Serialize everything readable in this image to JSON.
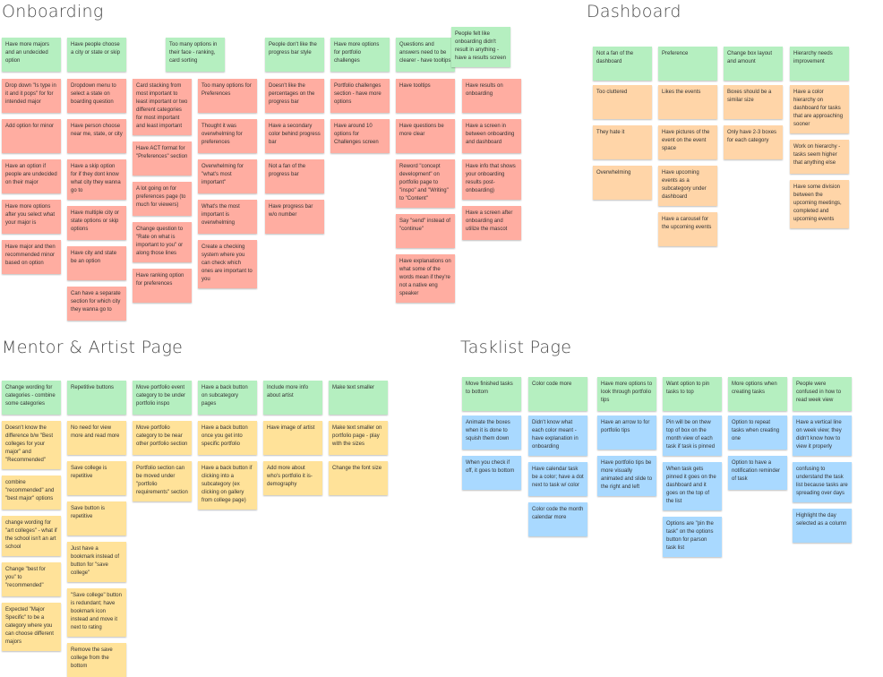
{
  "colors": {
    "header": "#b5efc0",
    "onboarding": "#ffada1",
    "dashboard": "#ffd5a8",
    "mentor": "#ffe299",
    "tasklist": "#a9d9ff"
  },
  "sections": [
    {
      "title": "Onboarding",
      "color": "red",
      "columns": [
        {
          "header": "Have more majors and an undecided option",
          "notes": [
            "Drop down \"Is type in it and it pops\" for for intended major",
            "Add option for minor",
            "Have an option if people are undecided on their major",
            "Have more options after you select what your major is",
            "Have major and then recommended minor based on option"
          ]
        },
        {
          "header": "Have people choose a city or state or skip",
          "notes": [
            "Dropdown menu to select a state on boarding question",
            "Have person choose near me, state, or city",
            "Have a skip option for if they dont know what city they wanna go to",
            "Have multiple city or state options or skip options",
            "Have city and state be an option",
            "Can have a separate section for which city they wanna go to"
          ]
        },
        {
          "header": null,
          "notes": [
            "Card stacking from most important to least important or two different categories for most important and least important",
            "Have ACT format for \"Preferences\" section",
            "A lot going on for preferences page (to much for viewers)",
            "Change question to \"Rate on what is important to you\" or along those lines",
            "Have ranking option for preferences"
          ]
        },
        {
          "header": "Too many options in their face - ranking, card sorting",
          "notes": [
            "Too many options for Preferences",
            "Thought it was overwhelming for preferences",
            "Overwhelming for \"what's most important\"",
            "What's the most important is overwhelming",
            "Create a checking system where you can check which ones are important to you"
          ]
        },
        {
          "header": "People don't like the progress bar style",
          "notes": [
            "Doesn't like the percentages on the progress bar",
            "Have a secondary color behind progress bar",
            "Not a fan of the progress bar",
            "Have progress bar w/o number"
          ]
        },
        {
          "header": "Have more options for portfolio challenges",
          "notes": [
            "Portfolio challenges section - have more options",
            "Have around 10 options for Challenges screen"
          ]
        },
        {
          "header": "Questions and answers need to be clearer - have tooltips",
          "notes": [
            "Have tooltips",
            "Have questions be more clear",
            "Reword \"concept development\" on portfolio page to \"inspo\" and \"Writing\" to \"Content\"",
            "Say \"send\" instead of \"continue\"",
            "Have explanations on what some of the words mean if they're not a native eng speaker"
          ]
        },
        {
          "header": "People felt like onboarding didn't result in anything - have a results screen",
          "notes": [
            "Have results on onboarding",
            "Have a screen in between onboarding and dashboard",
            "Have info that shows your onboarding results post-onboarding)",
            "Have a screen after onboarding and utilize the mascot"
          ]
        }
      ]
    },
    {
      "title": "Dashboard",
      "color": "orange",
      "columns": [
        {
          "header": "Not a fan of the dashboard",
          "notes": [
            "Too cluttered",
            "They hate it",
            "Overwhelming"
          ]
        },
        {
          "header": "Preference",
          "notes": [
            "Likes the events",
            "Have pictures of the event on the event space",
            "Have upcoming events as a subcategory under dashboard",
            "Have a carousel for the upcoming events"
          ]
        },
        {
          "header": "Change box layout and amount",
          "notes": [
            "Boxes should be a similar size",
            "Only have 2-3 boxes for each category"
          ]
        },
        {
          "header": "Hierarchy needs improvement",
          "notes": [
            "Have a color hierarchy on dashboard for tasks that are approaching sooner",
            "Work on hierarchy - tasks seem higher that anything else",
            "Have some division between the upcoming meetings, completed and upcoming events"
          ]
        }
      ]
    },
    {
      "title": "Mentor & Artist Page",
      "color": "yellow",
      "columns": [
        {
          "header": "Change wording for categories - combine some categories",
          "notes": [
            "Doesn't know the difference b/w \"Best colleges for your major\" and \"Recommended\"",
            "combine \"recommended\" and \"best major\" options",
            "change wording for \"art colleges\" - what if the school isn't an art school",
            "Change \"best for you\" to \"recommended\"",
            "Expected \"Major Specific\" to be a category where you can choose different majors"
          ]
        },
        {
          "header": "Repetitive buttons",
          "notes": [
            "No need for view more and read more",
            "Save college is repetitive",
            "Save button is repetitive",
            "Just have a bookmark instead of button for \"save college\"",
            "\"Save college\" button is redundant; have bookmark icon instead and move it next to rating",
            "Remove the save college from the bottom"
          ]
        },
        {
          "header": "Move portfolio event category to be under portfolio inspo",
          "notes": [
            "Move portfolio category to be near other portfolio section",
            "Portfolio section can be moved under \"portfolio requirements\" section"
          ]
        },
        {
          "header": "Have a back button on subcategory pages",
          "notes": [
            "Have a back button once you get into specific portfolio",
            "Have a back button if clicking into a subcategory (ex clicking on gallery from college page)"
          ]
        },
        {
          "header": "Include more info about artist",
          "notes": [
            "Have image of artist",
            "Add more about who's portfolio it is-demography"
          ]
        },
        {
          "header": "Make text smaller",
          "notes": [
            "Make text smaller on portfolio page - play with the sizes",
            "Change the font size"
          ]
        }
      ]
    },
    {
      "title": "Tasklist Page",
      "color": "blue",
      "columns": [
        {
          "header": "Move finished tasks to bottom",
          "notes": [
            "Animate the boxes when it is done to squish them down",
            "When you check if off, it goes to bottom"
          ]
        },
        {
          "header": "Color code more",
          "notes": [
            "Didn't know what each color meant - have explanation in onboarding",
            "Have calendar task be a color; have a dot next to task w/ color",
            "Color code the month calendar more"
          ]
        },
        {
          "header": "Have more options to look through portfolio tips",
          "notes": [
            "Have an arrow to for portfolio tips",
            "Have portfolio tips be more visually animated and slide to the right and left"
          ]
        },
        {
          "header": "Want option to pin tasks to top",
          "notes": [
            "Pin will be on thew top of box on the month view of each task if task is pinned",
            "When task gets pinned it goes on the dashboard and it goes on the top of the list",
            "Options are \"pin the task\" on the options button for parson task list"
          ]
        },
        {
          "header": "More options when creating tasks",
          "notes": [
            "Option to repeat tasks when creating one",
            "Option to have a notification reminder of task"
          ]
        },
        {
          "header": "People were confused in how to read week view",
          "notes": [
            "Have a vertical line on week view; they didn't know how to view it properly",
            "confusing to understand the task list because tasks are spreading over days",
            "Highlight the day selected as a column"
          ]
        }
      ]
    }
  ]
}
